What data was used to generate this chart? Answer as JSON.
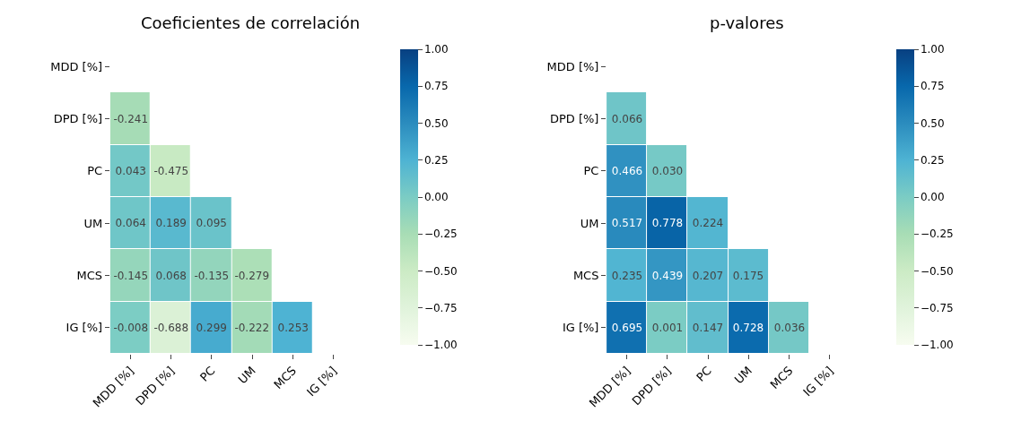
{
  "chart_data": [
    {
      "type": "heatmap",
      "title": "Coeficientes de correlación",
      "categories": [
        "MDD [%]",
        "DPD [%]",
        "PC",
        "UM",
        "MCS",
        "IG [%]"
      ],
      "y_categories": [
        "MDD [%]",
        "DPD [%]",
        "PC",
        "UM",
        "MCS",
        "IG [%]"
      ],
      "cells": [
        [
          null,
          null,
          null,
          null,
          null,
          null
        ],
        [
          -0.241,
          null,
          null,
          null,
          null,
          null
        ],
        [
          0.043,
          -0.475,
          null,
          null,
          null,
          null
        ],
        [
          0.064,
          0.189,
          0.095,
          null,
          null,
          null
        ],
        [
          -0.145,
          0.068,
          -0.135,
          -0.279,
          null,
          null
        ],
        [
          -0.008,
          -0.688,
          0.299,
          -0.222,
          0.253,
          null
        ]
      ],
      "cell_labels": [
        [
          null,
          null,
          null,
          null,
          null,
          null
        ],
        [
          "-0.241",
          null,
          null,
          null,
          null,
          null
        ],
        [
          "0.043",
          "-0.475",
          null,
          null,
          null,
          null
        ],
        [
          "0.064",
          "0.189",
          "0.095",
          null,
          null,
          null
        ],
        [
          "-0.145",
          "0.068",
          "-0.135",
          "-0.279",
          null,
          null
        ],
        [
          "-0.008",
          "-0.688",
          "0.299",
          "-0.222",
          "0.253",
          null
        ]
      ],
      "clim": [
        -1,
        1
      ],
      "cticks": [
        {
          "value": -1,
          "label": "−1.00"
        },
        {
          "value": -0.75,
          "label": "−0.75"
        },
        {
          "value": -0.5,
          "label": "−0.50"
        },
        {
          "value": -0.25,
          "label": "−0.25"
        },
        {
          "value": 0,
          "label": "0.00"
        },
        {
          "value": 0.25,
          "label": "0.25"
        },
        {
          "value": 0.5,
          "label": "0.50"
        },
        {
          "value": 0.75,
          "label": "0.75"
        },
        {
          "value": 1,
          "label": "1.00"
        }
      ]
    },
    {
      "type": "heatmap",
      "title": "p-valores",
      "categories": [
        "MDD [%]",
        "DPD [%]",
        "PC",
        "UM",
        "MCS",
        "IG [%]"
      ],
      "y_categories": [
        "MDD [%]",
        "DPD [%]",
        "PC",
        "UM",
        "MCS",
        "IG [%]"
      ],
      "cells": [
        [
          null,
          null,
          null,
          null,
          null,
          null
        ],
        [
          0.066,
          null,
          null,
          null,
          null,
          null
        ],
        [
          0.466,
          0.03,
          null,
          null,
          null,
          null
        ],
        [
          0.517,
          0.778,
          0.224,
          null,
          null,
          null
        ],
        [
          0.235,
          0.439,
          0.207,
          0.175,
          null,
          null
        ],
        [
          0.695,
          0.001,
          0.147,
          0.728,
          0.036,
          null
        ]
      ],
      "cell_labels": [
        [
          null,
          null,
          null,
          null,
          null,
          null
        ],
        [
          "0.066",
          null,
          null,
          null,
          null,
          null
        ],
        [
          "0.466",
          "0.030",
          null,
          null,
          null,
          null
        ],
        [
          "0.517",
          "0.778",
          "0.224",
          null,
          null,
          null
        ],
        [
          "0.235",
          "0.439",
          "0.207",
          "0.175",
          null,
          null
        ],
        [
          "0.695",
          "0.001",
          "0.147",
          "0.728",
          "0.036",
          null
        ]
      ],
      "clim": [
        -1,
        1
      ],
      "cticks": [
        {
          "value": -1,
          "label": "−1.00"
        },
        {
          "value": -0.75,
          "label": "−0.75"
        },
        {
          "value": -0.5,
          "label": "−0.50"
        },
        {
          "value": -0.25,
          "label": "−0.25"
        },
        {
          "value": 0,
          "label": "0.00"
        },
        {
          "value": 0.25,
          "label": "0.25"
        },
        {
          "value": 0.5,
          "label": "0.50"
        },
        {
          "value": 0.75,
          "label": "0.75"
        },
        {
          "value": 1,
          "label": "1.00"
        }
      ]
    }
  ]
}
